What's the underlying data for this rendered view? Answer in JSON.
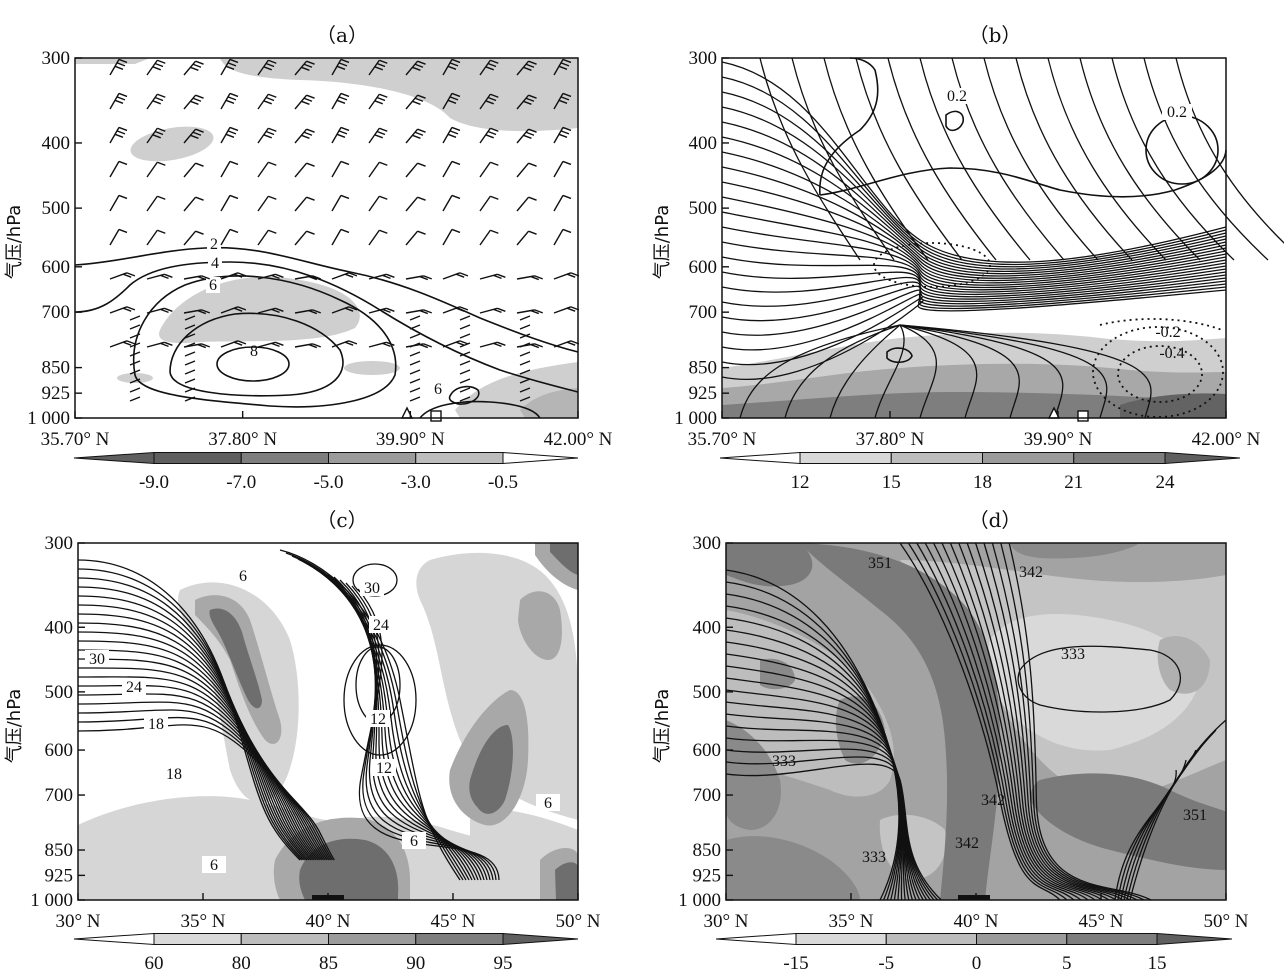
{
  "figure": {
    "y_axis_label": "气压/hPa",
    "panels": [
      {
        "title": "（a）",
        "x_ticks": [
          "35.70° N",
          "37.80° N",
          "39.90° N",
          "42.00° N"
        ],
        "y_ticks": [
          "300",
          "400",
          "500",
          "600",
          "700",
          "850",
          "925",
          "1 000"
        ],
        "contour_labels": [
          "2",
          "4",
          "6",
          "8",
          "6"
        ],
        "markers": [
          "triangle",
          "square"
        ],
        "colorbar": {
          "ticks": [
            "-9.0",
            "-7.0",
            "-5.0",
            "-3.0",
            "-0.5"
          ],
          "colors": [
            "#5f5f5f",
            "#7e7e7e",
            "#9b9b9b",
            "#bdbdbd",
            "#d9d9d9"
          ]
        }
      },
      {
        "title": "（b）",
        "x_ticks": [
          "35.70° N",
          "37.80° N",
          "39.90° N",
          "42.00° N"
        ],
        "y_ticks": [
          "300",
          "400",
          "500",
          "600",
          "700",
          "850",
          "925",
          "1 000"
        ],
        "contour_labels": [
          "0.2",
          "0.2",
          "-0.2",
          "-0.4"
        ],
        "markers": [
          "triangle",
          "square"
        ],
        "colorbar": {
          "ticks": [
            "12",
            "15",
            "18",
            "21",
            "24"
          ],
          "colors": [
            "#d9d9d9",
            "#bdbdbd",
            "#9b9b9b",
            "#7e7e7e",
            "#5f5f5f"
          ]
        }
      },
      {
        "title": "（c）",
        "x_ticks": [
          "30° N",
          "35° N",
          "40° N",
          "45° N",
          "50° N"
        ],
        "y_ticks": [
          "300",
          "400",
          "500",
          "600",
          "700",
          "850",
          "925",
          "1 000"
        ],
        "contour_labels": [
          "6",
          "30",
          "24",
          "30",
          "24",
          "18",
          "18",
          "12",
          "12",
          "6",
          "6",
          "6"
        ],
        "colorbar": {
          "ticks": [
            "60",
            "80",
            "85",
            "90",
            "95"
          ],
          "colors": [
            "#d9d9d9",
            "#bdbdbd",
            "#9b9b9b",
            "#7e7e7e",
            "#5f5f5f"
          ]
        }
      },
      {
        "title": "（d）",
        "x_ticks": [
          "30° N",
          "35° N",
          "40° N",
          "45° N",
          "50° N"
        ],
        "y_ticks": [
          "300",
          "400",
          "500",
          "600",
          "700",
          "850",
          "925",
          "1 000"
        ],
        "contour_labels": [
          "351",
          "342",
          "333",
          "333",
          "342",
          "351",
          "342",
          "333"
        ],
        "colorbar": {
          "ticks": [
            "-15",
            "-5",
            "0",
            "5",
            "15"
          ],
          "colors": [
            "#d9d9d9",
            "#bdbdbd",
            "#9b9b9b",
            "#7e7e7e",
            "#5f5f5f"
          ]
        }
      }
    ]
  },
  "chart_data": [
    {
      "type": "heatmap",
      "title": "（a）",
      "xlabel": "",
      "ylabel": "气压/hPa",
      "x_range": [
        "35.70° N",
        "42.00° N"
      ],
      "y_levels_hPa": [
        300,
        400,
        500,
        600,
        700,
        850,
        925,
        1000
      ],
      "shading_levels": [
        -9.0,
        -7.0,
        -5.0,
        -3.0,
        -0.5
      ],
      "contour_levels": [
        2,
        4,
        6,
        8
      ],
      "overlay": "wind barbs"
    },
    {
      "type": "heatmap",
      "title": "（b）",
      "xlabel": "",
      "ylabel": "气压/hPa",
      "x_range": [
        "35.70° N",
        "42.00° N"
      ],
      "y_levels_hPa": [
        300,
        400,
        500,
        600,
        700,
        850,
        925,
        1000
      ],
      "shading_levels": [
        12,
        15,
        18,
        21,
        24
      ],
      "contour_levels": [
        -0.4,
        -0.2,
        0.2
      ],
      "overlay": "streamlines"
    },
    {
      "type": "heatmap",
      "title": "（c）",
      "xlabel": "",
      "ylabel": "气压/hPa",
      "x_range": [
        "30° N",
        "50° N"
      ],
      "y_levels_hPa": [
        300,
        400,
        500,
        600,
        700,
        850,
        925,
        1000
      ],
      "shading_levels": [
        60,
        80,
        85,
        90,
        95
      ],
      "contour_levels": [
        6,
        12,
        18,
        24,
        30
      ]
    },
    {
      "type": "heatmap",
      "title": "（d）",
      "xlabel": "",
      "ylabel": "气压/hPa",
      "x_range": [
        "30° N",
        "50° N"
      ],
      "y_levels_hPa": [
        300,
        400,
        500,
        600,
        700,
        850,
        925,
        1000
      ],
      "shading_levels": [
        -15,
        -5,
        0,
        5,
        15
      ],
      "contour_levels": [
        333,
        342,
        351
      ]
    }
  ]
}
